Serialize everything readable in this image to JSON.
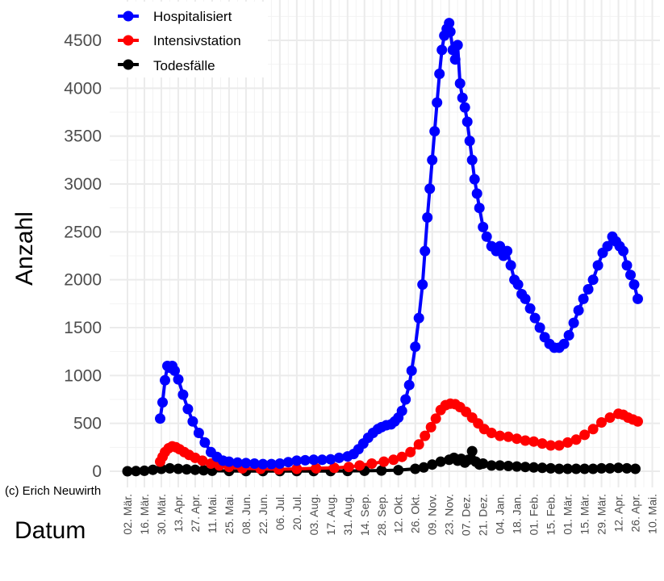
{
  "chart_data": {
    "type": "line",
    "xlabel": "Datum",
    "ylabel": "Anzahl",
    "caption": "(c) Erich Neuwirth",
    "ylim": [
      0,
      4800
    ],
    "y_ticks": [
      "0",
      "500",
      "1000",
      "1500",
      "2000",
      "2500",
      "3000",
      "3500",
      "4000",
      "4500"
    ],
    "x_domain": [
      "2020-03-02",
      "2021-05-10"
    ],
    "x_ticks": [
      {
        "date": "2020-03-02",
        "label": "02. Mär."
      },
      {
        "date": "2020-03-16",
        "label": "16. Mär."
      },
      {
        "date": "2020-03-30",
        "label": "30. Mär."
      },
      {
        "date": "2020-04-13",
        "label": "13. Apr."
      },
      {
        "date": "2020-04-27",
        "label": "27. Apr."
      },
      {
        "date": "2020-05-11",
        "label": "11. Mai."
      },
      {
        "date": "2020-05-25",
        "label": "25. Mai."
      },
      {
        "date": "2020-06-08",
        "label": "08. Jun."
      },
      {
        "date": "2020-06-22",
        "label": "22. Jun."
      },
      {
        "date": "2020-07-06",
        "label": "06. Jul."
      },
      {
        "date": "2020-07-20",
        "label": "20. Jul."
      },
      {
        "date": "2020-08-03",
        "label": "03. Aug."
      },
      {
        "date": "2020-08-17",
        "label": "17. Aug."
      },
      {
        "date": "2020-08-31",
        "label": "31. Aug."
      },
      {
        "date": "2020-09-14",
        "label": "14. Sep."
      },
      {
        "date": "2020-09-28",
        "label": "28. Sep."
      },
      {
        "date": "2020-10-12",
        "label": "12. Okt."
      },
      {
        "date": "2020-10-26",
        "label": "26. Okt."
      },
      {
        "date": "2020-11-09",
        "label": "09. Nov."
      },
      {
        "date": "2020-11-23",
        "label": "23. Nov."
      },
      {
        "date": "2020-12-07",
        "label": "07. Dez."
      },
      {
        "date": "2020-12-21",
        "label": "21. Dez."
      },
      {
        "date": "2021-01-04",
        "label": "04. Jan."
      },
      {
        "date": "2021-01-18",
        "label": "18. Jan."
      },
      {
        "date": "2021-02-01",
        "label": "01. Feb."
      },
      {
        "date": "2021-02-15",
        "label": "15. Feb."
      },
      {
        "date": "2021-03-01",
        "label": "01. Mär."
      },
      {
        "date": "2021-03-15",
        "label": "15. Mär."
      },
      {
        "date": "2021-03-29",
        "label": "29. Mär."
      },
      {
        "date": "2021-04-12",
        "label": "12. Apr."
      },
      {
        "date": "2021-04-26",
        "label": "26. Apr."
      },
      {
        "date": "2021-05-10",
        "label": "10. Mai."
      }
    ],
    "grid": true,
    "legend_position": "top-left",
    "series": [
      {
        "name": "Hospitalisiert",
        "color": "#0000ff",
        "points": [
          [
            "2020-03-29",
            550
          ],
          [
            "2020-03-31",
            720
          ],
          [
            "2020-04-02",
            950
          ],
          [
            "2020-04-04",
            1100
          ],
          [
            "2020-04-06",
            1080
          ],
          [
            "2020-04-08",
            1100
          ],
          [
            "2020-04-10",
            1050
          ],
          [
            "2020-04-13",
            960
          ],
          [
            "2020-04-17",
            800
          ],
          [
            "2020-04-21",
            650
          ],
          [
            "2020-04-25",
            520
          ],
          [
            "2020-04-30",
            400
          ],
          [
            "2020-05-05",
            300
          ],
          [
            "2020-05-10",
            200
          ],
          [
            "2020-05-15",
            150
          ],
          [
            "2020-05-20",
            110
          ],
          [
            "2020-05-25",
            100
          ],
          [
            "2020-06-01",
            90
          ],
          [
            "2020-06-08",
            85
          ],
          [
            "2020-06-15",
            80
          ],
          [
            "2020-06-22",
            75
          ],
          [
            "2020-06-29",
            75
          ],
          [
            "2020-07-06",
            80
          ],
          [
            "2020-07-13",
            95
          ],
          [
            "2020-07-20",
            110
          ],
          [
            "2020-07-27",
            115
          ],
          [
            "2020-08-03",
            120
          ],
          [
            "2020-08-10",
            120
          ],
          [
            "2020-08-17",
            125
          ],
          [
            "2020-08-24",
            140
          ],
          [
            "2020-08-31",
            155
          ],
          [
            "2020-09-05",
            180
          ],
          [
            "2020-09-09",
            230
          ],
          [
            "2020-09-13",
            290
          ],
          [
            "2020-09-17",
            350
          ],
          [
            "2020-09-21",
            400
          ],
          [
            "2020-09-25",
            440
          ],
          [
            "2020-09-28",
            460
          ],
          [
            "2020-10-02",
            480
          ],
          [
            "2020-10-06",
            490
          ],
          [
            "2020-10-09",
            520
          ],
          [
            "2020-10-12",
            560
          ],
          [
            "2020-10-15",
            630
          ],
          [
            "2020-10-18",
            750
          ],
          [
            "2020-10-21",
            900
          ],
          [
            "2020-10-23",
            1050
          ],
          [
            "2020-10-26",
            1300
          ],
          [
            "2020-10-29",
            1600
          ],
          [
            "2020-11-01",
            1950
          ],
          [
            "2020-11-03",
            2300
          ],
          [
            "2020-11-05",
            2650
          ],
          [
            "2020-11-07",
            2950
          ],
          [
            "2020-11-09",
            3250
          ],
          [
            "2020-11-11",
            3550
          ],
          [
            "2020-11-13",
            3850
          ],
          [
            "2020-11-15",
            4150
          ],
          [
            "2020-11-17",
            4400
          ],
          [
            "2020-11-19",
            4550
          ],
          [
            "2020-11-21",
            4620
          ],
          [
            "2020-11-23",
            4680
          ],
          [
            "2020-11-24",
            4590
          ],
          [
            "2020-11-26",
            4400
          ],
          [
            "2020-11-28",
            4300
          ],
          [
            "2020-11-30",
            4450
          ],
          [
            "2020-12-02",
            4050
          ],
          [
            "2020-12-04",
            3900
          ],
          [
            "2020-12-06",
            3800
          ],
          [
            "2020-12-08",
            3650
          ],
          [
            "2020-12-10",
            3450
          ],
          [
            "2020-12-12",
            3250
          ],
          [
            "2020-12-14",
            3050
          ],
          [
            "2020-12-16",
            2900
          ],
          [
            "2020-12-18",
            2750
          ],
          [
            "2020-12-21",
            2550
          ],
          [
            "2020-12-24",
            2450
          ],
          [
            "2020-12-28",
            2350
          ],
          [
            "2021-01-01",
            2300
          ],
          [
            "2021-01-04",
            2350
          ],
          [
            "2021-01-07",
            2250
          ],
          [
            "2021-01-10",
            2300
          ],
          [
            "2021-01-13",
            2150
          ],
          [
            "2021-01-16",
            2000
          ],
          [
            "2021-01-19",
            1950
          ],
          [
            "2021-01-22",
            1850
          ],
          [
            "2021-01-25",
            1800
          ],
          [
            "2021-01-29",
            1700
          ],
          [
            "2021-02-02",
            1600
          ],
          [
            "2021-02-06",
            1500
          ],
          [
            "2021-02-10",
            1400
          ],
          [
            "2021-02-14",
            1330
          ],
          [
            "2021-02-18",
            1290
          ],
          [
            "2021-02-22",
            1290
          ],
          [
            "2021-02-26",
            1330
          ],
          [
            "2021-03-02",
            1420
          ],
          [
            "2021-03-06",
            1550
          ],
          [
            "2021-03-10",
            1680
          ],
          [
            "2021-03-14",
            1800
          ],
          [
            "2021-03-18",
            1900
          ],
          [
            "2021-03-22",
            2000
          ],
          [
            "2021-03-26",
            2150
          ],
          [
            "2021-03-30",
            2280
          ],
          [
            "2021-04-03",
            2350
          ],
          [
            "2021-04-07",
            2450
          ],
          [
            "2021-04-10",
            2400
          ],
          [
            "2021-04-13",
            2350
          ],
          [
            "2021-04-16",
            2300
          ],
          [
            "2021-04-19",
            2150
          ],
          [
            "2021-04-22",
            2050
          ],
          [
            "2021-04-25",
            1950
          ],
          [
            "2021-04-28",
            1800
          ]
        ]
      },
      {
        "name": "Intensivstation",
        "color": "#ff0000",
        "points": [
          [
            "2020-03-29",
            100
          ],
          [
            "2020-03-31",
            150
          ],
          [
            "2020-04-02",
            200
          ],
          [
            "2020-04-05",
            240
          ],
          [
            "2020-04-08",
            260
          ],
          [
            "2020-04-11",
            250
          ],
          [
            "2020-04-14",
            230
          ],
          [
            "2020-04-18",
            200
          ],
          [
            "2020-04-22",
            170
          ],
          [
            "2020-04-27",
            140
          ],
          [
            "2020-05-03",
            110
          ],
          [
            "2020-05-10",
            80
          ],
          [
            "2020-05-17",
            60
          ],
          [
            "2020-05-25",
            45
          ],
          [
            "2020-06-05",
            30
          ],
          [
            "2020-06-20",
            25
          ],
          [
            "2020-07-05",
            20
          ],
          [
            "2020-07-20",
            25
          ],
          [
            "2020-08-05",
            30
          ],
          [
            "2020-08-20",
            35
          ],
          [
            "2020-09-01",
            45
          ],
          [
            "2020-09-10",
            60
          ],
          [
            "2020-09-20",
            80
          ],
          [
            "2020-09-30",
            100
          ],
          [
            "2020-10-08",
            120
          ],
          [
            "2020-10-15",
            150
          ],
          [
            "2020-10-22",
            200
          ],
          [
            "2020-10-29",
            280
          ],
          [
            "2020-11-03",
            370
          ],
          [
            "2020-11-08",
            460
          ],
          [
            "2020-11-12",
            550
          ],
          [
            "2020-11-16",
            640
          ],
          [
            "2020-11-20",
            690
          ],
          [
            "2020-11-24",
            705
          ],
          [
            "2020-11-28",
            700
          ],
          [
            "2020-12-02",
            670
          ],
          [
            "2020-12-07",
            620
          ],
          [
            "2020-12-12",
            560
          ],
          [
            "2020-12-17",
            500
          ],
          [
            "2020-12-22",
            440
          ],
          [
            "2020-12-28",
            400
          ],
          [
            "2021-01-04",
            370
          ],
          [
            "2021-01-11",
            360
          ],
          [
            "2021-01-18",
            340
          ],
          [
            "2021-01-25",
            320
          ],
          [
            "2021-02-01",
            310
          ],
          [
            "2021-02-08",
            290
          ],
          [
            "2021-02-15",
            270
          ],
          [
            "2021-02-22",
            270
          ],
          [
            "2021-03-01",
            300
          ],
          [
            "2021-03-08",
            330
          ],
          [
            "2021-03-15",
            380
          ],
          [
            "2021-03-22",
            440
          ],
          [
            "2021-03-29",
            510
          ],
          [
            "2021-04-05",
            560
          ],
          [
            "2021-04-12",
            600
          ],
          [
            "2021-04-16",
            590
          ],
          [
            "2021-04-20",
            560
          ],
          [
            "2021-04-24",
            540
          ],
          [
            "2021-04-28",
            520
          ]
        ]
      },
      {
        "name": "Todesfälle",
        "color": "#000000",
        "points": [
          [
            "2020-03-02",
            0
          ],
          [
            "2020-03-09",
            2
          ],
          [
            "2020-03-16",
            5
          ],
          [
            "2020-03-23",
            15
          ],
          [
            "2020-03-30",
            25
          ],
          [
            "2020-04-06",
            30
          ],
          [
            "2020-04-13",
            25
          ],
          [
            "2020-04-20",
            20
          ],
          [
            "2020-04-27",
            15
          ],
          [
            "2020-05-04",
            10
          ],
          [
            "2020-05-11",
            5
          ],
          [
            "2020-05-25",
            3
          ],
          [
            "2020-06-08",
            2
          ],
          [
            "2020-06-22",
            2
          ],
          [
            "2020-07-06",
            2
          ],
          [
            "2020-07-20",
            2
          ],
          [
            "2020-08-03",
            2
          ],
          [
            "2020-08-17",
            2
          ],
          [
            "2020-08-31",
            3
          ],
          [
            "2020-09-14",
            5
          ],
          [
            "2020-09-28",
            8
          ],
          [
            "2020-10-12",
            12
          ],
          [
            "2020-10-26",
            25
          ],
          [
            "2020-11-02",
            40
          ],
          [
            "2020-11-09",
            70
          ],
          [
            "2020-11-16",
            100
          ],
          [
            "2020-11-23",
            120
          ],
          [
            "2020-11-27",
            140
          ],
          [
            "2020-11-30",
            110
          ],
          [
            "2020-12-03",
            130
          ],
          [
            "2020-12-06",
            90
          ],
          [
            "2020-12-09",
            120
          ],
          [
            "2020-12-12",
            210
          ],
          [
            "2020-12-15",
            100
          ],
          [
            "2020-12-18",
            70
          ],
          [
            "2020-12-21",
            80
          ],
          [
            "2020-12-28",
            60
          ],
          [
            "2021-01-04",
            60
          ],
          [
            "2021-01-11",
            55
          ],
          [
            "2021-01-18",
            50
          ],
          [
            "2021-01-25",
            45
          ],
          [
            "2021-02-01",
            40
          ],
          [
            "2021-02-08",
            35
          ],
          [
            "2021-02-15",
            30
          ],
          [
            "2021-02-22",
            25
          ],
          [
            "2021-03-01",
            25
          ],
          [
            "2021-03-08",
            25
          ],
          [
            "2021-03-15",
            25
          ],
          [
            "2021-03-22",
            25
          ],
          [
            "2021-03-29",
            30
          ],
          [
            "2021-04-05",
            30
          ],
          [
            "2021-04-12",
            35
          ],
          [
            "2021-04-19",
            30
          ],
          [
            "2021-04-26",
            25
          ]
        ]
      }
    ]
  }
}
